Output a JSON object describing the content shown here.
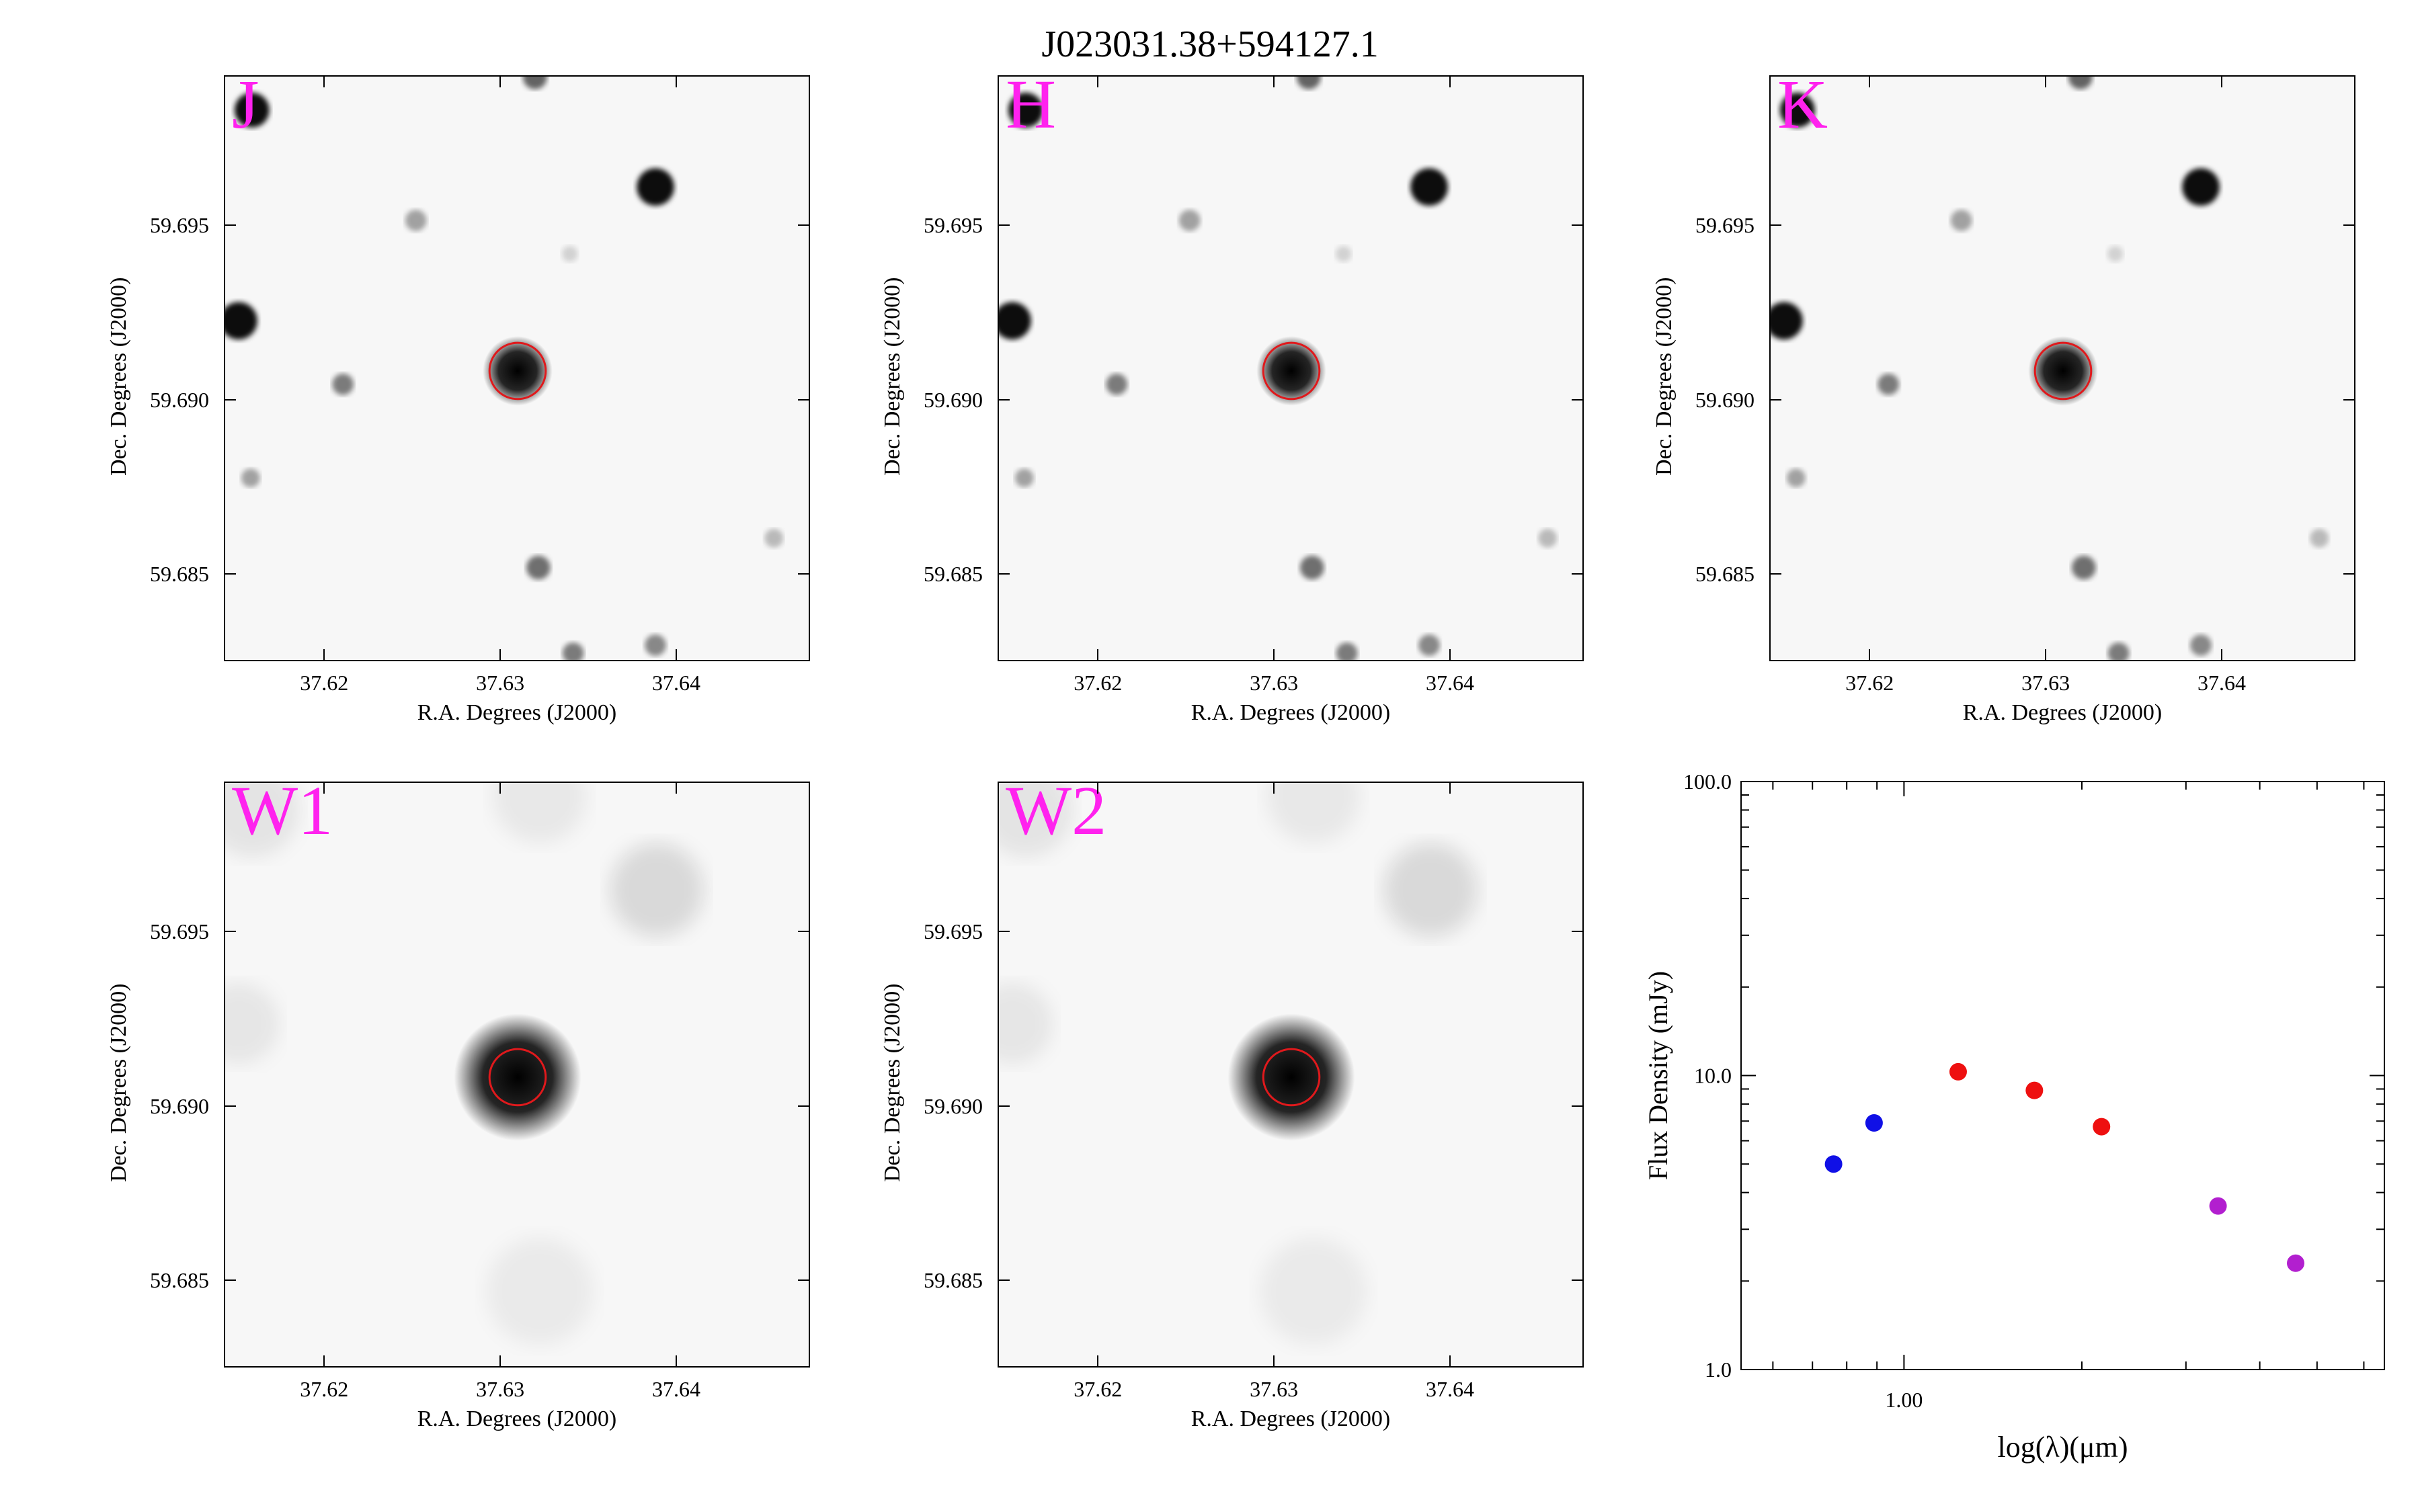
{
  "title": "J023031.38+594127.1",
  "image_axes": {
    "xlabel": "R.A. Degrees (J2000)",
    "ylabel": "Dec. Degrees (J2000)",
    "xticks": [
      "37.62",
      "37.63",
      "37.64"
    ],
    "yticks": [
      "59.695",
      "59.690",
      "59.685"
    ],
    "xlim": [
      37.6143,
      37.6476
    ],
    "ylim": [
      59.6825,
      59.6993
    ]
  },
  "panels": [
    {
      "band": "J"
    },
    {
      "band": "H"
    },
    {
      "band": "K"
    },
    {
      "band": "W1"
    },
    {
      "band": "W2"
    }
  ],
  "colors": {
    "band_label": "#ff22ee",
    "aperture": "#e0191c",
    "sdss": "#1010e6",
    "twomass": "#ee1010",
    "wise": "#b21fcf"
  },
  "chart_data": {
    "type": "scatter",
    "xlabel": "log(λ)(μm)",
    "ylabel": "Flux Density (mJy)",
    "x_scale": "log",
    "y_scale": "log",
    "xlim": [
      0.53,
      6.5
    ],
    "ylim": [
      1.0,
      100.0
    ],
    "xticklabels": [
      "1.00"
    ],
    "yticklabels": [
      "1.0",
      "10.0",
      "100.0"
    ],
    "series": [
      {
        "color": "#1010e6",
        "points": [
          {
            "x": 0.76,
            "y": 5.0
          },
          {
            "x": 0.89,
            "y": 6.9
          }
        ]
      },
      {
        "color": "#ee1010",
        "points": [
          {
            "x": 1.235,
            "y": 10.3
          },
          {
            "x": 1.662,
            "y": 8.9
          },
          {
            "x": 2.159,
            "y": 6.7
          }
        ]
      },
      {
        "color": "#b21fcf",
        "points": [
          {
            "x": 3.4,
            "y": 3.6
          },
          {
            "x": 4.6,
            "y": 2.3
          }
        ]
      }
    ]
  }
}
